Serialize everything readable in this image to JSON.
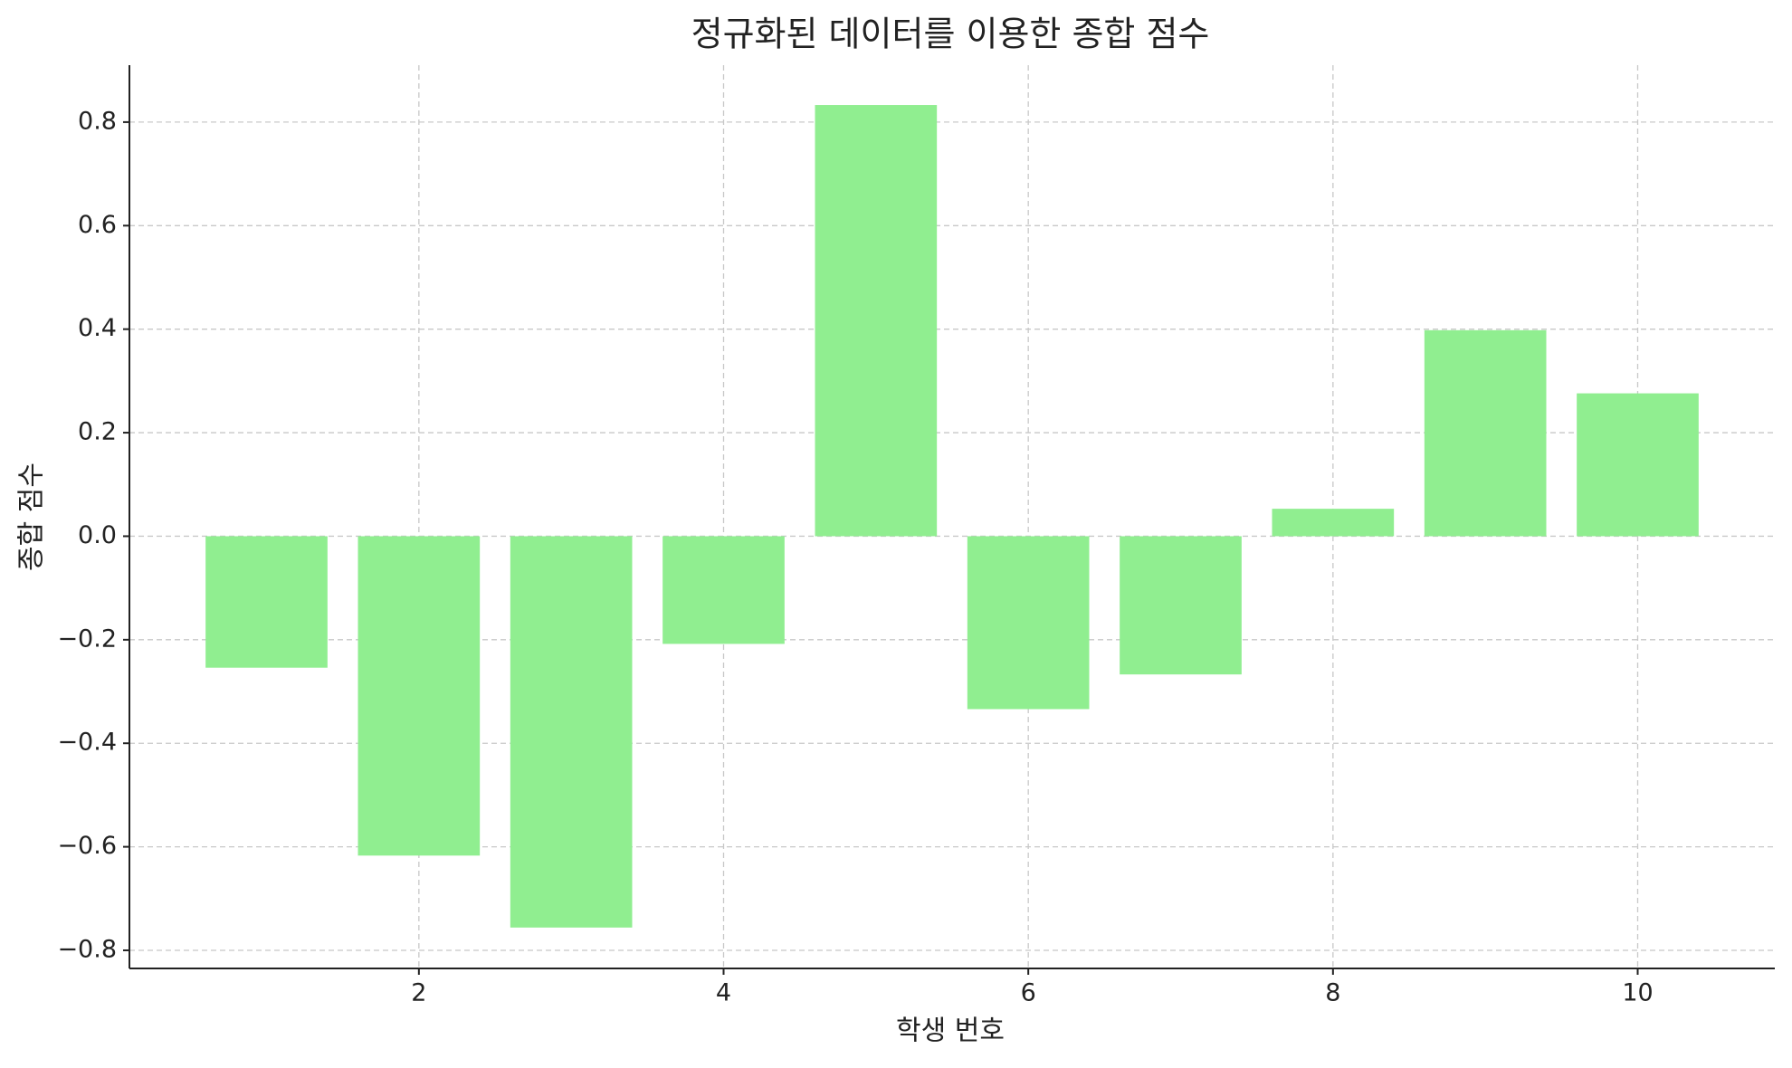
{
  "chart_data": {
    "type": "bar",
    "title": "정규화된 데이터를 이용한 종합 점수",
    "x_label": "학생 번호",
    "y_label": "종합 점수",
    "x": [
      1,
      2,
      3,
      4,
      5,
      6,
      7,
      8,
      9,
      10
    ],
    "values": [
      -0.254,
      -0.617,
      -0.756,
      -0.208,
      0.833,
      -0.334,
      -0.267,
      0.053,
      0.398,
      0.276
    ],
    "color": "#90ee90",
    "bar_width": 0.8,
    "xlim": [
      0.1,
      10.9
    ],
    "xticks": [
      2,
      4,
      6,
      8,
      10
    ],
    "ylim": [
      -0.835,
      0.91
    ],
    "yticks": [
      {
        "value": -0.8,
        "label": "−0.8"
      },
      {
        "value": -0.6,
        "label": "−0.6"
      },
      {
        "value": -0.4,
        "label": "−0.4"
      },
      {
        "value": -0.2,
        "label": "−0.2"
      },
      {
        "value": 0,
        "label": "0.0"
      },
      0.2,
      0.4,
      0.6,
      0.8
    ],
    "grid": true
  }
}
